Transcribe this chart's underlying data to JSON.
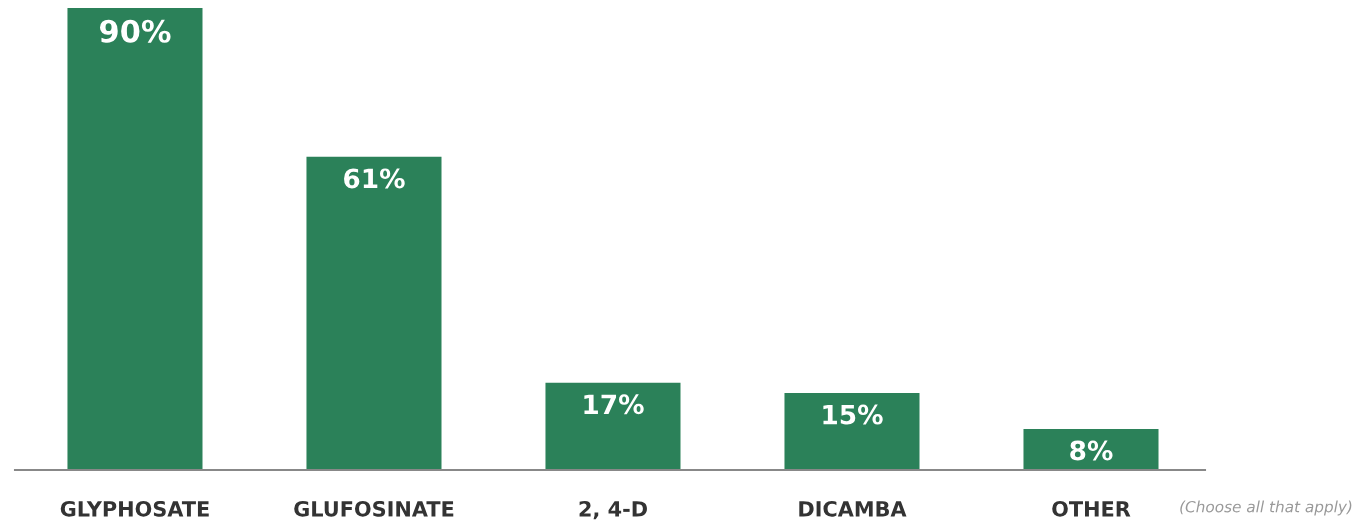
{
  "chart_data": {
    "type": "bar",
    "categories": [
      "GLYPHOSATE",
      "GLUFOSINATE",
      "2, 4-D",
      "DICAMBA",
      "OTHER"
    ],
    "values": [
      90,
      61,
      17,
      15,
      8
    ],
    "value_labels": [
      "90%",
      "61%",
      "17%",
      "15%",
      "8%"
    ],
    "color": "#2b8159",
    "annotations": [
      "(Choose all that apply)"
    ],
    "grid": false,
    "legend": false
  }
}
